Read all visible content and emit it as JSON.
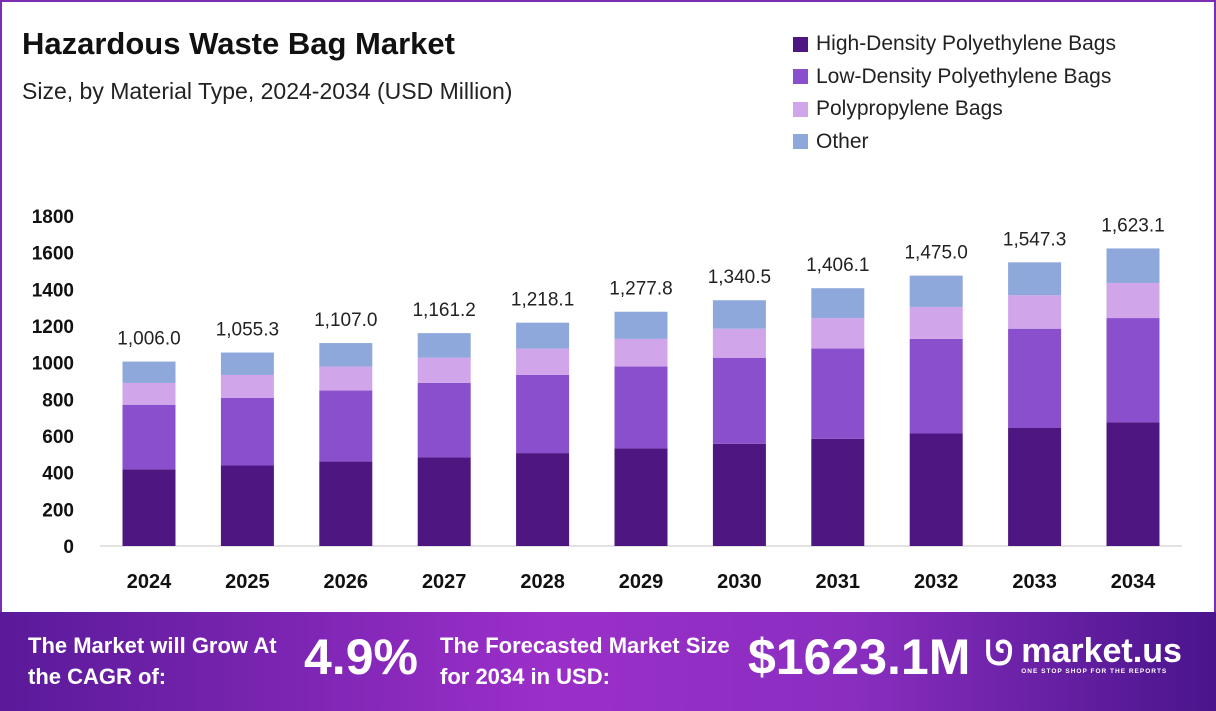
{
  "header": {
    "title": "Hazardous Waste Bag Market",
    "subtitle": "Size, by Material Type, 2024-2034 (USD Million)"
  },
  "chart_data": {
    "type": "bar",
    "stacked": true,
    "categories": [
      "2024",
      "2025",
      "2026",
      "2027",
      "2028",
      "2029",
      "2030",
      "2031",
      "2032",
      "2033",
      "2034"
    ],
    "series": [
      {
        "name": "High-Density Polyethylene Bags",
        "color": "#4e1680",
        "values": [
          418.5,
          439.0,
          460.5,
          483.1,
          506.7,
          531.6,
          557.7,
          584.9,
          613.6,
          643.7,
          675.2
        ]
      },
      {
        "name": "Low-Density Polyethylene Bags",
        "color": "#8a4fcc",
        "values": [
          352.1,
          369.4,
          387.5,
          406.4,
          426.3,
          447.2,
          469.2,
          492.1,
          516.3,
          541.6,
          568.1
        ]
      },
      {
        "name": "Polypropylene Bags",
        "color": "#d0a5ea",
        "values": [
          118.7,
          124.5,
          130.6,
          137.0,
          143.7,
          150.8,
          158.2,
          165.9,
          174.1,
          182.6,
          191.5
        ]
      },
      {
        "name": "Other",
        "color": "#8ea8dc",
        "values": [
          116.7,
          122.4,
          128.4,
          134.7,
          141.4,
          148.2,
          155.4,
          163.2,
          171.0,
          179.4,
          188.3
        ]
      }
    ],
    "totals_labels": [
      "1,006.0",
      "1,055.3",
      "1,107.0",
      "1,161.2",
      "1,218.1",
      "1,277.8",
      "1,340.5",
      "1,406.1",
      "1,475.0",
      "1,547.3",
      "1,623.1"
    ],
    "totals": [
      1006.0,
      1055.3,
      1107.0,
      1161.2,
      1218.1,
      1277.8,
      1340.5,
      1406.1,
      1475.0,
      1547.3,
      1623.1
    ],
    "ylim": [
      0,
      1800
    ],
    "yticks": [
      "0",
      "200",
      "400",
      "600",
      "800",
      "1000",
      "1200",
      "1400",
      "1600",
      "1800"
    ],
    "grid": false,
    "legend": "top-right"
  },
  "footer": {
    "cagr_label": "The Market will Grow At the CAGR of:",
    "cagr_value": "4.9%",
    "forecast_label": "The Forecasted Market Size for 2034 in USD:",
    "forecast_value": "$1623.1M",
    "logo_name": "market.us",
    "logo_tagline": "ONE STOP SHOP FOR THE REPORTS"
  }
}
